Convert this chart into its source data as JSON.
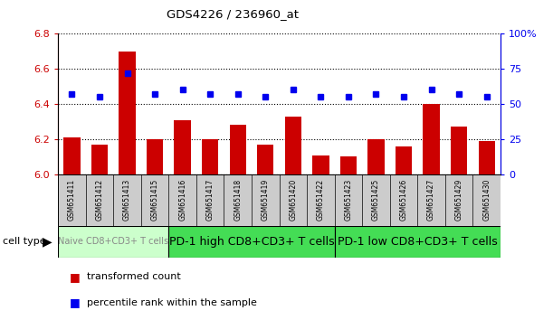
{
  "title": "GDS4226 / 236960_at",
  "samples": [
    "GSM651411",
    "GSM651412",
    "GSM651413",
    "GSM651415",
    "GSM651416",
    "GSM651417",
    "GSM651418",
    "GSM651419",
    "GSM651420",
    "GSM651422",
    "GSM651423",
    "GSM651425",
    "GSM651426",
    "GSM651427",
    "GSM651429",
    "GSM651430"
  ],
  "bar_values": [
    6.21,
    6.17,
    6.7,
    6.2,
    6.31,
    6.2,
    6.28,
    6.17,
    6.33,
    6.11,
    6.1,
    6.2,
    6.16,
    6.4,
    6.27,
    6.19
  ],
  "dot_values": [
    57,
    55,
    72,
    57,
    60,
    57,
    57,
    55,
    60,
    55,
    55,
    57,
    55,
    60,
    57,
    55
  ],
  "bar_color": "#cc0000",
  "dot_color": "#0000ee",
  "ylim_left": [
    6.0,
    6.8
  ],
  "ylim_right": [
    0,
    100
  ],
  "yticks_left": [
    6.0,
    6.2,
    6.4,
    6.6,
    6.8
  ],
  "yticks_right": [
    0,
    25,
    50,
    75,
    100
  ],
  "ytick_labels_right": [
    "0",
    "25",
    "50",
    "75",
    "100%"
  ],
  "groups": [
    {
      "label": "Naive CD8+CD3+ T cells",
      "start": 0,
      "end": 4,
      "color": "#ccffcc",
      "text_color": "#888888",
      "fontsize": 7
    },
    {
      "label": "PD-1 high CD8+CD3+ T cells",
      "start": 4,
      "end": 10,
      "color": "#44dd55",
      "text_color": "#000000",
      "fontsize": 9
    },
    {
      "label": "PD-1 low CD8+CD3+ T cells",
      "start": 10,
      "end": 16,
      "color": "#44dd55",
      "text_color": "#000000",
      "fontsize": 9
    }
  ],
  "cell_type_label": "cell type",
  "legend_bar_label": "transformed count",
  "legend_dot_label": "percentile rank within the sample",
  "label_area_color": "#cccccc"
}
